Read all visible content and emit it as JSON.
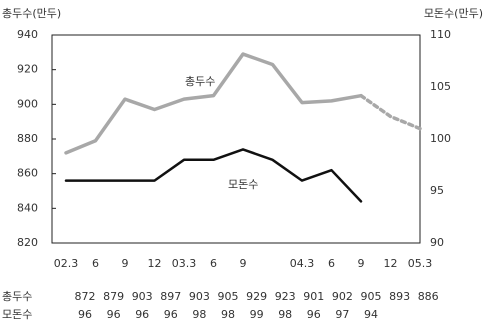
{
  "chart_data": {
    "type": "line",
    "y_title": "총두수(만두)",
    "y2_title": "모돈수(만두)",
    "categories": [
      "02.3",
      "6",
      "9",
      "12",
      "03.3",
      "6",
      "9",
      null,
      "04.3",
      "6",
      "9",
      "12",
      "05.3"
    ],
    "ylim": [
      820,
      940
    ],
    "yticks": [
      820,
      840,
      860,
      880,
      900,
      920,
      940
    ],
    "y2lim": [
      90,
      110
    ],
    "y2ticks": [
      90,
      95,
      100,
      105,
      110
    ],
    "grid": false,
    "series": [
      {
        "name": "총두수",
        "color": "#a8a8a8",
        "dashed_from": 10,
        "values": [
          872,
          879,
          903,
          897,
          903,
          905,
          929,
          923,
          901,
          902,
          905,
          893,
          886
        ]
      },
      {
        "name": "모돈수",
        "color": "#111111",
        "axis": "y2",
        "values": [
          96,
          96,
          96,
          96,
          98,
          98,
          99,
          98,
          96,
          97,
          94,
          null,
          null
        ]
      }
    ]
  }
}
